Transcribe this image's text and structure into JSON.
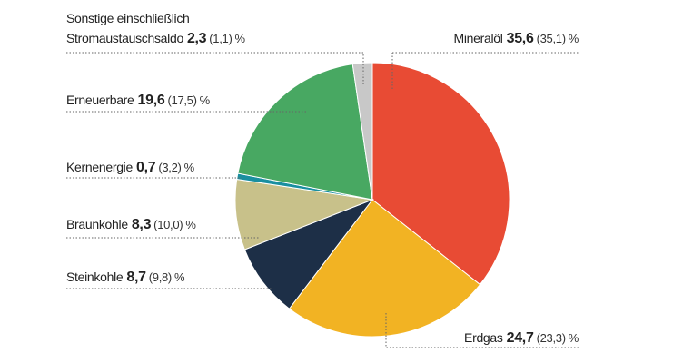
{
  "chart_data": {
    "type": "pie",
    "categories": [
      "Mineralöl",
      "Erdgas",
      "Steinkohle",
      "Braunkohle",
      "Kernenergie",
      "Erneuerbare",
      "Sonstige einschließlich\nStromaustauschsaldo"
    ],
    "values": [
      35.6,
      24.7,
      8.7,
      8.3,
      0.7,
      19.6,
      2.3
    ],
    "value_labels": [
      "35,6",
      "24,7",
      "8,7",
      "8,3",
      "0,7",
      "19,6",
      "2,3"
    ],
    "previous_labels": [
      "(35,1)",
      "(23,3)",
      "(9,8)",
      "(10,0)",
      "(3,2)",
      "(17,5)",
      "(1,1)"
    ],
    "unit": "%",
    "colors": [
      "#e84b34",
      "#f2b323",
      "#1d2f47",
      "#c8c18a",
      "#1a8fa0",
      "#48a862",
      "#c8c8c8"
    ]
  }
}
